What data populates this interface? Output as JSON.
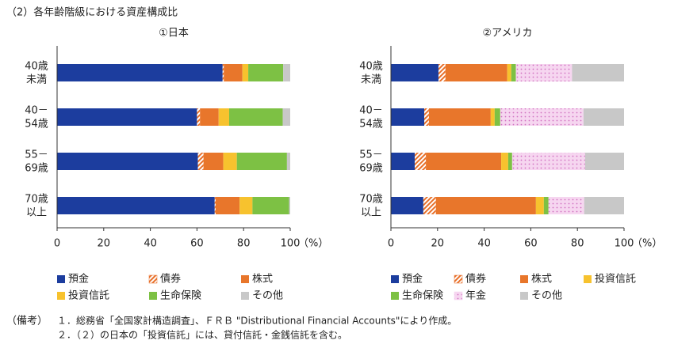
{
  "heading": "（2）各年齢階級における資産構成比",
  "chart_data": [
    {
      "type": "bar",
      "orientation": "horizontal",
      "stacked": true,
      "title": "①日本",
      "categories": [
        "40歳\n未満",
        "40－\n54歳",
        "55－\n69歳",
        "70歳\n以上"
      ],
      "series": [
        {
          "name": "預金",
          "color": "#1c3d9e",
          "values": [
            71,
            60,
            60.4,
            67.6
          ]
        },
        {
          "name": "債券",
          "color": "#e8702a",
          "pattern": "hatch",
          "values": [
            0.5,
            1.3,
            2.4,
            0.4
          ]
        },
        {
          "name": "株式",
          "color": "#e8762b",
          "values": [
            8,
            8,
            8.5,
            10.3
          ]
        },
        {
          "name": "投資信託",
          "color": "#f7c22e",
          "values": [
            2.5,
            4.5,
            5.8,
            5.5
          ]
        },
        {
          "name": "生命保険",
          "color": "#7dc144",
          "values": [
            15,
            23,
            21.5,
            15.7
          ]
        },
        {
          "name": "その他",
          "color": "#c8c8c8",
          "values": [
            3,
            3.2,
            1.4,
            0.5
          ]
        }
      ],
      "xlim": [
        0,
        100
      ],
      "xticks": [
        0,
        20,
        40,
        60,
        80,
        100
      ],
      "xlabel": "（%）",
      "legend_columns": 3
    },
    {
      "type": "bar",
      "orientation": "horizontal",
      "stacked": true,
      "title": "②アメリカ",
      "categories": [
        "40歳\n未満",
        "40－\n54歳",
        "55－\n69歳",
        "70歳\n以上"
      ],
      "series": [
        {
          "name": "預金",
          "color": "#1c3d9e",
          "values": [
            20.4,
            14.3,
            10.2,
            13.9
          ]
        },
        {
          "name": "債券",
          "color": "#e8702a",
          "pattern": "hatch",
          "values": [
            3,
            2,
            4.8,
            5.4
          ]
        },
        {
          "name": "株式",
          "color": "#e8762b",
          "values": [
            26.5,
            26.5,
            32.3,
            42.9
          ]
        },
        {
          "name": "投資信託",
          "color": "#f7c22e",
          "values": [
            1.7,
            1.7,
            3,
            3.4
          ]
        },
        {
          "name": "生命保険",
          "color": "#7dc144",
          "values": [
            2,
            2.4,
            1.7,
            2
          ]
        },
        {
          "name": "年金",
          "color": "#f6d6f0",
          "pattern": "dots",
          "values": [
            24.1,
            35.7,
            31.3,
            15.3
          ]
        },
        {
          "name": "その他",
          "color": "#c8c8c8",
          "values": [
            22.3,
            17.4,
            16.7,
            17.1
          ]
        }
      ],
      "xlim": [
        0,
        100
      ],
      "xticks": [
        0,
        20,
        40,
        60,
        80,
        100
      ],
      "xlabel": "（%）",
      "legend_columns": 4
    }
  ],
  "notes": {
    "label": "（備考）",
    "items": [
      "１．総務省「全国家計構造調査」、ＦＲＢ \"Distributional Financial Accounts\"により作成。",
      "２．（２）の日本の「投資信託」には、貸付信託・金銭信託を含む。"
    ]
  }
}
